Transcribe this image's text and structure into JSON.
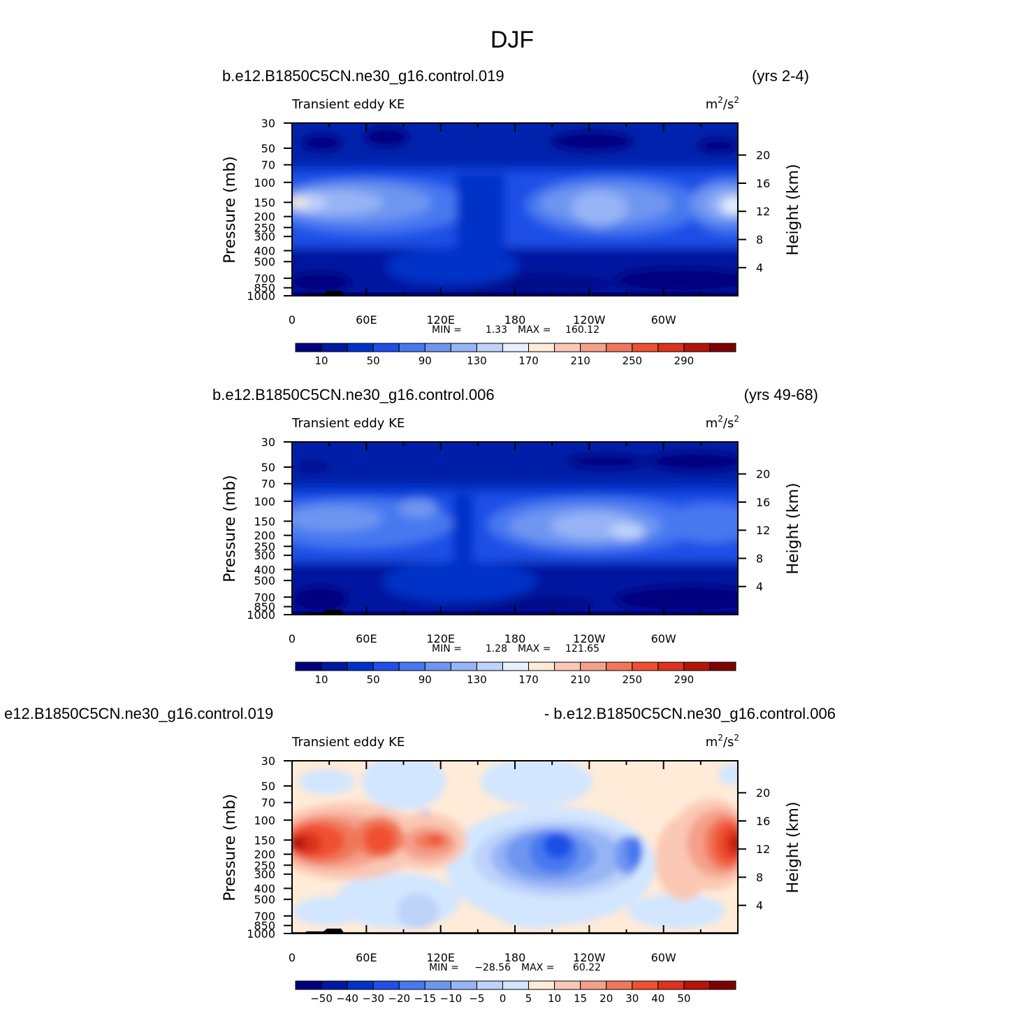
{
  "figure": {
    "title": "DJF",
    "colors": {
      "abs_levels": [
        "#00007f",
        "#0019a0",
        "#0032c8",
        "#1e50e6",
        "#4678f0",
        "#6e96f0",
        "#96b4f5",
        "#bed2fa",
        "#e6f0ff",
        "#ffebd7",
        "#fac8b4",
        "#f5a08c",
        "#f0785a",
        "#f05032",
        "#dc321e",
        "#b4140a",
        "#7f0000"
      ],
      "diff_levels": [
        "#00007f",
        "#0019a0",
        "#0032c8",
        "#1e50e6",
        "#4678f0",
        "#6e96f0",
        "#96b4f5",
        "#bed2fa",
        "#d2e6ff",
        "#ffebd7",
        "#fac8b4",
        "#f5a08c",
        "#f0785a",
        "#f05032",
        "#dc321e",
        "#b4140a",
        "#7f0000"
      ]
    }
  },
  "chart_data": [
    {
      "type": "heatmap",
      "panel": "test",
      "case_label": "b.e12.B1850C5CN.ne30_g16.control.019",
      "years_label": "(yrs 2-4)",
      "variable": "Transient eddy KE",
      "units": "m²/s²",
      "units_base": "m",
      "units_mid": "/s",
      "sup": "2",
      "ylabel": "Pressure (mb)",
      "ylabel_right": "Height (km)",
      "x_ticks": [
        "0",
        "60E",
        "120E",
        "180",
        "120W",
        "60W"
      ],
      "y_ticks": [
        "30",
        "50",
        "70",
        "100",
        "150",
        "200",
        "250",
        "300",
        "400",
        "500",
        "700",
        "850",
        "1000"
      ],
      "height_ticks": [
        "20",
        "16",
        "12",
        "8",
        "4"
      ],
      "min_label": "MIN =",
      "min_value": "1.33",
      "max_label": "MAX =",
      "max_value": "160.12",
      "colorbar_labels": [
        "10",
        "50",
        "90",
        "130",
        "170",
        "210",
        "250",
        "290"
      ]
    },
    {
      "type": "heatmap",
      "panel": "control",
      "case_label": "b.e12.B1850C5CN.ne30_g16.control.006",
      "years_label": "(yrs 49-68)",
      "variable": "Transient eddy KE",
      "units": "m²/s²",
      "units_base": "m",
      "units_mid": "/s",
      "sup": "2",
      "ylabel": "Pressure (mb)",
      "ylabel_right": "Height (km)",
      "x_ticks": [
        "0",
        "60E",
        "120E",
        "180",
        "120W",
        "60W"
      ],
      "y_ticks": [
        "30",
        "50",
        "70",
        "100",
        "150",
        "200",
        "250",
        "300",
        "400",
        "500",
        "700",
        "850",
        "1000"
      ],
      "height_ticks": [
        "20",
        "16",
        "12",
        "8",
        "4"
      ],
      "min_label": "MIN =",
      "min_value": "1.28",
      "max_label": "MAX =",
      "max_value": "121.65",
      "colorbar_labels": [
        "10",
        "50",
        "90",
        "130",
        "170",
        "210",
        "250",
        "290"
      ]
    },
    {
      "type": "heatmap",
      "panel": "difference",
      "case_label": "e12.B1850C5CN.ne30_g16.control.019",
      "case_label_right": "- b.e12.B1850C5CN.ne30_g16.control.006",
      "variable": "Transient eddy KE",
      "units": "m²/s²",
      "units_base": "m",
      "units_mid": "/s",
      "sup": "2",
      "ylabel": "Pressure (mb)",
      "ylabel_right": "Height (km)",
      "x_ticks": [
        "0",
        "60E",
        "120E",
        "180",
        "120W",
        "60W"
      ],
      "y_ticks": [
        "30",
        "50",
        "70",
        "100",
        "150",
        "200",
        "250",
        "300",
        "400",
        "500",
        "700",
        "850",
        "1000"
      ],
      "height_ticks": [
        "20",
        "16",
        "12",
        "8",
        "4"
      ],
      "min_label": "MIN =",
      "min_value": "−28.56",
      "max_label": "MAX =",
      "max_value": "60.22",
      "colorbar_labels": [
        "−50",
        "−40",
        "−30",
        "−20",
        "−15",
        "−10",
        "−5",
        "0",
        "5",
        "10",
        "15",
        "20",
        "30",
        "40",
        "50"
      ]
    }
  ]
}
